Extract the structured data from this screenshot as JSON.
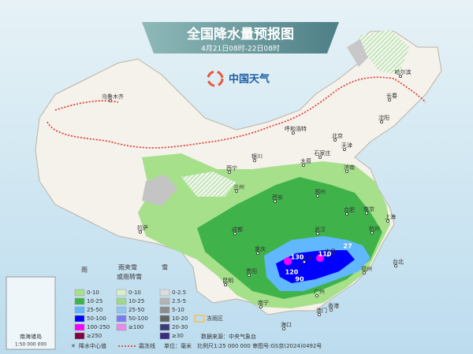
{
  "header": {
    "title": "全国降水量预报图",
    "subtitle": "4月21日08时-22日08时",
    "logo": "中国天气"
  },
  "cities": [
    "乌鲁木齐",
    "哈尔滨",
    "长春",
    "沈阳",
    "呼和浩特",
    "北京",
    "天津",
    "石家庄",
    "太原",
    "银川",
    "济南",
    "西宁",
    "兰州",
    "郑州",
    "西安",
    "合肥",
    "南京",
    "上海",
    "拉萨",
    "成都",
    "武汉",
    "杭州",
    "重庆",
    "长沙",
    "南昌",
    "贵阳",
    "福州",
    "台北",
    "昆明",
    "南宁",
    "广州",
    "香港",
    "澳门",
    "海口"
  ],
  "centers": [
    130,
    120,
    90,
    110,
    27
  ],
  "legend": {
    "rain": {
      "title": "雨",
      "items": [
        {
          "label": "0-10",
          "color": "#a6e08a"
        },
        {
          "label": "10-25",
          "color": "#3fb34a"
        },
        {
          "label": "25-50",
          "color": "#61b8ff"
        },
        {
          "label": "50-100",
          "color": "#0000fe"
        },
        {
          "label": "100-250",
          "color": "#fa00fa"
        },
        {
          "label": "≥250",
          "color": "#7f0040"
        }
      ]
    },
    "sleet": {
      "title": [
        "雨夹雪",
        "或雨转雪"
      ],
      "items": [
        {
          "label": "0-10",
          "color": "#d8f0c8"
        },
        {
          "label": "10-25",
          "color": "#9fd88c"
        },
        {
          "label": "25-50",
          "color": "#8ec8f0"
        },
        {
          "label": "50-100",
          "color": "#7a7af0"
        },
        {
          "label": "≥100",
          "color": "#e88ae8"
        }
      ]
    },
    "snow": {
      "title": "雪",
      "items": [
        {
          "label": "0-2.5",
          "color": "#dcdcdc"
        },
        {
          "label": "2.5-5",
          "color": "#b4b4b4"
        },
        {
          "label": "5-10",
          "color": "#8c8c8c"
        },
        {
          "label": "10-20",
          "color": "#646464"
        },
        {
          "label": "20-30",
          "color": "#3c3c78"
        },
        {
          "label": "≥30",
          "color": "#3a2a80"
        }
      ]
    },
    "freeze": {
      "label": "冻雨区",
      "color": "#f0c060"
    }
  },
  "footer": {
    "center_value": "降水中心值",
    "frost_line": "霜冻线",
    "unit": "单位：毫米",
    "source": "数据来源：中央气象台",
    "scale": "比例尺1:25 000 000  审图号:GS京(2024)0492号"
  },
  "inset": {
    "title": "南海诸岛",
    "scale": "1:50 000 000"
  }
}
